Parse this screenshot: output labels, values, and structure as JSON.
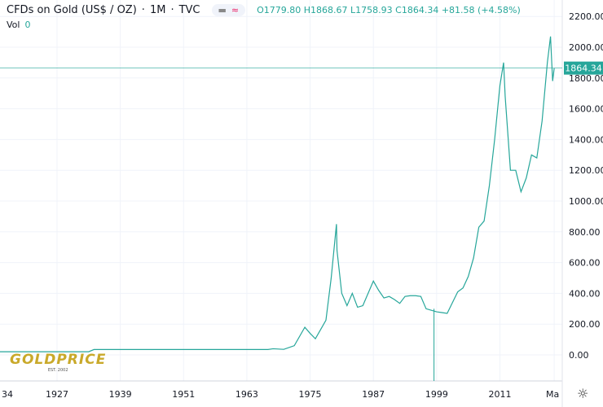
{
  "header": {
    "title": "CFDs on Gold (US$ / OZ)",
    "interval": "1M",
    "source": "TVC",
    "open": "O1779.80",
    "high": "H1868.67",
    "low": "L1758.93",
    "close": "C1864.34",
    "change": "+81.58 (+4.58%)",
    "vol_label": "Vol",
    "vol_value": "0"
  },
  "logo": {
    "text": "GOLDPRICE",
    "sub": "EST. 2002"
  },
  "colors": {
    "line": "#26a69a",
    "up": "#26a69a",
    "down": "#ef5350",
    "last": "#26a69a"
  },
  "chart_data": {
    "type": "line",
    "title": "CFDs on Gold (US$ / OZ) · 1M · TVC",
    "last_price_label": "1864.34",
    "last_price": 1864.34,
    "ylim": [
      -150,
      2250
    ],
    "y_ticks": [
      "2200.00",
      "2000.00",
      "1800.00",
      "1600.00",
      "1400.00",
      "1200.00",
      "1000.00",
      "800.00",
      "600.00",
      "400.00",
      "200.00",
      "0.00"
    ],
    "y_tick_values": [
      2200,
      2000,
      1800,
      1600,
      1400,
      1200,
      1000,
      800,
      600,
      400,
      200,
      0
    ],
    "x_ticks": [
      "34",
      "1927",
      "1939",
      "1951",
      "1963",
      "1975",
      "1987",
      "1999",
      "2011",
      "Ma"
    ],
    "x_tick_years": [
      1915,
      1927,
      1939,
      1951,
      1963,
      1975,
      1987,
      1999,
      2011,
      2021.3
    ],
    "series": [
      {
        "name": "Gold",
        "x": [
          1915,
          1933,
          1934,
          1967,
          1968,
          1970,
          1972,
          1974,
          1975,
          1976,
          1977,
          1978,
          1979,
          1980,
          1980.1,
          1981,
          1982,
          1983,
          1984,
          1985,
          1986,
          1987,
          1988,
          1989,
          1990,
          1991,
          1992,
          1993,
          1994,
          1995,
          1996,
          1997,
          1998,
          1999,
          2000,
          2001,
          2002,
          2003,
          2004,
          2005,
          2006,
          2007,
          2008,
          2009,
          2010,
          2011,
          2011.7,
          2012,
          2013,
          2014,
          2015,
          2016,
          2017,
          2018,
          2019,
          2020,
          2020.6,
          2021,
          2021.3
        ],
        "y": [
          20.67,
          20.67,
          35,
          35,
          40,
          36,
          60,
          180,
          140,
          105,
          165,
          225,
          500,
          850,
          680,
          400,
          320,
          400,
          310,
          320,
          400,
          480,
          420,
          370,
          380,
          360,
          335,
          380,
          385,
          385,
          380,
          300,
          290,
          280,
          275,
          270,
          340,
          410,
          435,
          510,
          630,
          830,
          870,
          1100,
          1400,
          1750,
          1900,
          1680,
          1200,
          1200,
          1060,
          1150,
          1300,
          1280,
          1520,
          1900,
          2070,
          1780,
          1864.34
        ]
      }
    ],
    "spike": {
      "year": 1998.5,
      "value": 0
    }
  }
}
